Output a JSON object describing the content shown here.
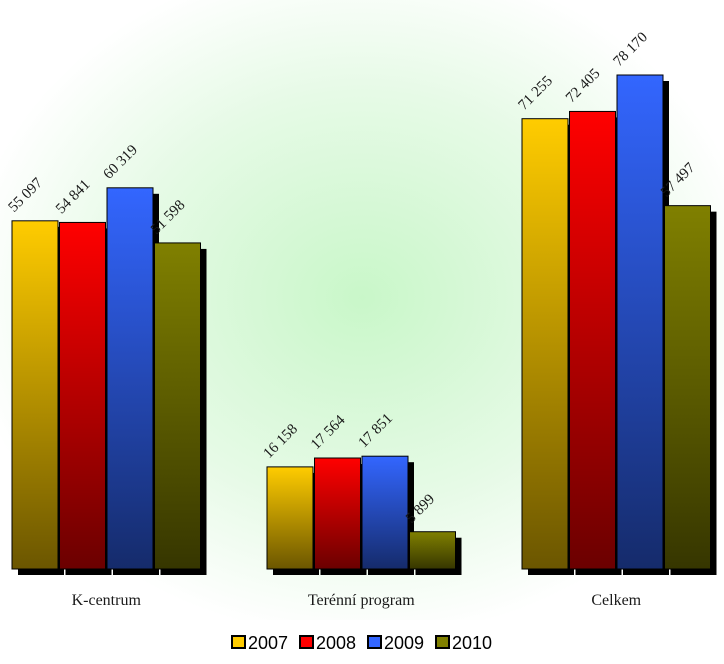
{
  "chart_data": {
    "type": "bar",
    "categories": [
      "K-centrum",
      "Terénní program",
      "Celkem"
    ],
    "series": [
      {
        "name": "2007",
        "color": "#ffcc00",
        "values": [
          55097,
          16158,
          71255
        ],
        "labels": [
          "55 097",
          "16 158",
          "71 255"
        ]
      },
      {
        "name": "2008",
        "color": "#ff0000",
        "values": [
          54841,
          17564,
          72405
        ],
        "labels": [
          "54 841",
          "17 564",
          "72 405"
        ]
      },
      {
        "name": "2009",
        "color": "#3366ff",
        "values": [
          60319,
          17851,
          78170
        ],
        "labels": [
          "60 319",
          "17 851",
          "78 170"
        ]
      },
      {
        "name": "2010",
        "color": "#808000",
        "values": [
          51598,
          5899,
          57497
        ],
        "labels": [
          "51 598",
          "5 899",
          "57 497"
        ]
      }
    ],
    "ylim": [
      0,
      85000
    ],
    "grid": false,
    "legend_position": "bottom",
    "background": "radial light green glow"
  }
}
